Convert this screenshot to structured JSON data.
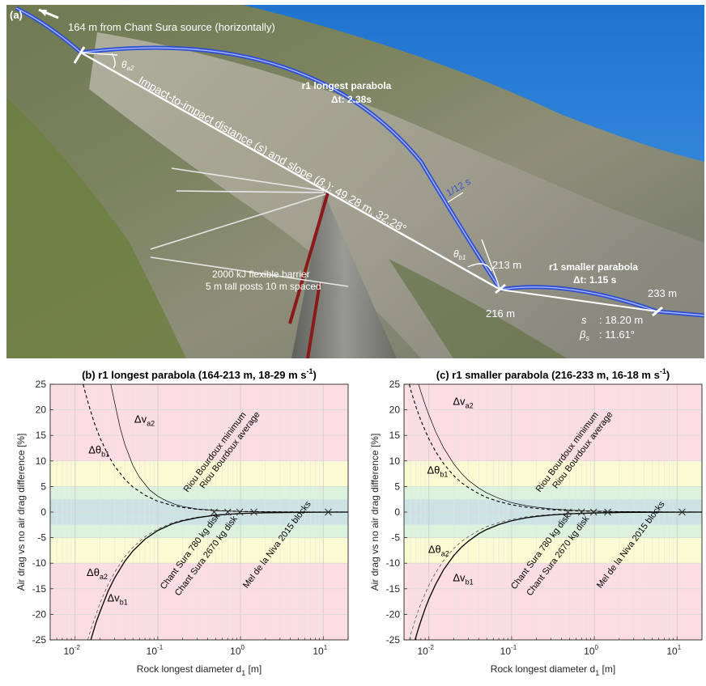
{
  "photo_panel": {
    "panel_label": "(a)",
    "source_note": "164 m from Chant Sura source (horizontally)",
    "theta_a2": "θ",
    "theta_a2_sub": "a2",
    "theta_b1": "θ",
    "theta_b1_sub": "b1",
    "impact_prefix": "Impact-to-impact distance (",
    "impact_s": "s",
    "impact_mid": ") and slope (",
    "impact_beta": "β",
    "impact_beta_sub": "s",
    "impact_suffix": "): 49.28 m, 32.28°",
    "longest_title": "r1 longest parabola",
    "longest_dt": "Δt: 2.38s",
    "tick_label": "1/12 s",
    "smaller_title": "r1 smaller parabola",
    "smaller_dt": "Δt: 1.15 s",
    "d213": "213 m",
    "d216": "216 m",
    "d233": "233 m",
    "barrier_line1": "2000 kJ flexible barrier",
    "barrier_line2": "5 m tall posts 10 m spaced",
    "s_label": "s",
    "s_value": "18.20 m",
    "beta_label": "β",
    "beta_sub": "s",
    "beta_value": "11.61°",
    "colors": {
      "sky": "#2a7fd6",
      "parabola": "#2f4fd0",
      "barrier": "#8a1a1a"
    }
  },
  "chart_data": [
    {
      "type": "line",
      "panel_label": "(b)",
      "title": "(b) r1 longest parabola (164-213 m, 18-29 m s",
      "title_sup": "-1",
      "title_end": ")",
      "xlabel": "Rock longest diameter d",
      "xlabel_sub": "1",
      "xlabel_end": " [m]",
      "ylabel": "Air drag vs no air drag difference [%]",
      "xscale": "log",
      "xlim": [
        0.005,
        20
      ],
      "ylim": [
        -25,
        25
      ],
      "grid": true,
      "x_ticks": [
        0.01,
        0.1,
        1,
        10
      ],
      "x_tick_labels": [
        [
          "10",
          "-2"
        ],
        [
          "10",
          "-1"
        ],
        [
          "10",
          "0"
        ],
        [
          "10",
          "1"
        ]
      ],
      "y_ticks": [
        -25,
        -20,
        -15,
        -10,
        -5,
        0,
        5,
        10,
        15,
        20,
        25
      ],
      "y_tick_labels": [
        "-25",
        "-20",
        "-15",
        "-10",
        "-5",
        "0",
        "5",
        "10",
        "15",
        "20",
        "25"
      ],
      "bands": [
        {
          "from": 10,
          "to": 25,
          "color": "#fbdde3"
        },
        {
          "from": 5,
          "to": 10,
          "color": "#fbfbd3"
        },
        {
          "from": 2.5,
          "to": 5,
          "color": "#dcf2dc"
        },
        {
          "from": -2.5,
          "to": 2.5,
          "color": "#cde3e3"
        },
        {
          "from": -5,
          "to": -2.5,
          "color": "#dcf2dc"
        },
        {
          "from": -10,
          "to": -5,
          "color": "#fbfbd3"
        },
        {
          "from": -25,
          "to": -10,
          "color": "#fbdde3"
        }
      ],
      "series": [
        {
          "name": "Δv",
          "name_sub": "a2",
          "style": "thin",
          "sign": 1,
          "x": [
            0.027,
            0.03,
            0.035,
            0.04,
            0.05,
            0.06,
            0.08,
            0.1,
            0.13,
            0.17,
            0.2,
            0.3,
            0.5,
            1,
            2,
            5,
            10,
            20
          ],
          "y": [
            25,
            21.5,
            16.5,
            13.2,
            9.1,
            6.8,
            4.3,
            3.1,
            2.1,
            1.4,
            1.1,
            0.6,
            0.3,
            0.12,
            0.05,
            0.02,
            0.01,
            0.0
          ]
        },
        {
          "name": "Δθ",
          "name_sub": "b1",
          "style": "dashed",
          "sign": 1,
          "x": [
            0.0125,
            0.014,
            0.017,
            0.02,
            0.025,
            0.03,
            0.04,
            0.05,
            0.07,
            0.1,
            0.15,
            0.2,
            0.3,
            0.5,
            1,
            2,
            5,
            10,
            20
          ],
          "y": [
            25,
            22,
            17.5,
            14.5,
            11.2,
            9.0,
            6.4,
            4.9,
            3.3,
            2.1,
            1.3,
            0.9,
            0.55,
            0.3,
            0.13,
            0.06,
            0.02,
            0.01,
            0.0
          ]
        },
        {
          "name": "Δθ",
          "name_sub": "a2",
          "style": "dashed-thin",
          "sign": -1,
          "x": [
            0.0142,
            0.016,
            0.02,
            0.025,
            0.03,
            0.04,
            0.05,
            0.07,
            0.1,
            0.15,
            0.2,
            0.3,
            0.5,
            1,
            2,
            5,
            10,
            20
          ],
          "y": [
            -25,
            -22.3,
            -17.8,
            -14.2,
            -11.8,
            -8.7,
            -6.9,
            -4.8,
            -3.3,
            -2.1,
            -1.55,
            -1.0,
            -0.55,
            -0.25,
            -0.12,
            -0.04,
            -0.02,
            0.0
          ]
        },
        {
          "name": "Δv",
          "name_sub": "b1",
          "style": "solid",
          "sign": -1,
          "x": [
            0.0155,
            0.018,
            0.02,
            0.025,
            0.03,
            0.04,
            0.05,
            0.07,
            0.1,
            0.15,
            0.2,
            0.3,
            0.5,
            1,
            2,
            5,
            10,
            20
          ],
          "y": [
            -25,
            -21.5,
            -19.5,
            -15.5,
            -12.9,
            -9.6,
            -7.6,
            -5.3,
            -3.6,
            -2.3,
            -1.7,
            -1.1,
            -0.6,
            -0.28,
            -0.13,
            -0.05,
            -0.02,
            0.0
          ]
        }
      ],
      "series_label_positions": [
        [
          0.052,
          17.5
        ],
        [
          0.0145,
          11.5
        ],
        [
          0.0138,
          -12.5
        ],
        [
          0.0245,
          -17.5
        ]
      ],
      "markers": [
        {
          "name": "Riou Bourdoux minimum",
          "x": 0.48,
          "y": 0
        },
        {
          "name": "Riou Bourdoux average",
          "x": 0.7,
          "y": 0
        },
        {
          "name": "Chant Sura 780 kg disk",
          "x": 0.98,
          "y": 0
        },
        {
          "name": "Chant Sura 2670 kg disk",
          "x": 1.45,
          "y": 0
        },
        {
          "name": "Mel de la Niva 2015 blocks",
          "x": 11.5,
          "y": 0
        }
      ],
      "annotations": [
        {
          "text": "Riou Bourdoux minimum",
          "x": 0.23,
          "y": 3.8,
          "angle": -53
        },
        {
          "text": "Riou Bourdoux average",
          "x": 0.36,
          "y": 4.5,
          "angle": -53
        },
        {
          "text": "Chant Sura 780 kg disk",
          "x": 0.12,
          "y": -15.2,
          "angle": -53
        },
        {
          "text": "Chant Sura 2670 kg disk",
          "x": 0.18,
          "y": -16.5,
          "angle": -53
        },
        {
          "text": "Mel de la Niva 2015 blocks",
          "x": 1.2,
          "y": -15,
          "angle": -53
        }
      ]
    },
    {
      "type": "line",
      "panel_label": "(c)",
      "title": "(c) r1 smaller parabola (216-233 m, 16-18 m s",
      "title_sup": "-1",
      "title_end": ")",
      "xlabel": "Rock longest diameter d",
      "xlabel_sub": "1",
      "xlabel_end": " [m]",
      "ylabel": "Air drag vs no air drag difference [%]",
      "xscale": "log",
      "xlim": [
        0.005,
        20
      ],
      "ylim": [
        -25,
        25
      ],
      "grid": true,
      "x_ticks": [
        0.01,
        0.1,
        1,
        10
      ],
      "x_tick_labels": [
        [
          "10",
          "-2"
        ],
        [
          "10",
          "-1"
        ],
        [
          "10",
          "0"
        ],
        [
          "10",
          "1"
        ]
      ],
      "y_ticks": [
        -25,
        -20,
        -15,
        -10,
        -5,
        0,
        5,
        10,
        15,
        20,
        25
      ],
      "y_tick_labels": [
        "-25",
        "-20",
        "-15",
        "-10",
        "-5",
        "0",
        "5",
        "10",
        "15",
        "20",
        "25"
      ],
      "bands": [
        {
          "from": 10,
          "to": 25,
          "color": "#fbdde3"
        },
        {
          "from": 5,
          "to": 10,
          "color": "#fbfbd3"
        },
        {
          "from": 2.5,
          "to": 5,
          "color": "#dcf2dc"
        },
        {
          "from": -2.5,
          "to": 2.5,
          "color": "#cde3e3"
        },
        {
          "from": -5,
          "to": -2.5,
          "color": "#dcf2dc"
        },
        {
          "from": -10,
          "to": -5,
          "color": "#fbfbd3"
        },
        {
          "from": -25,
          "to": -10,
          "color": "#fbdde3"
        }
      ],
      "series": [
        {
          "name": "Δv",
          "name_sub": "a2",
          "style": "thin",
          "sign": 1,
          "x": [
            0.0075,
            0.008,
            0.009,
            0.01,
            0.012,
            0.015,
            0.02,
            0.025,
            0.03,
            0.04,
            0.05,
            0.07,
            0.1,
            0.15,
            0.2,
            0.3,
            0.5,
            1,
            2,
            5,
            10,
            20
          ],
          "y": [
            25,
            23.5,
            21,
            19,
            15.8,
            12.6,
            9.4,
            7.5,
            6.2,
            4.7,
            3.75,
            2.7,
            1.85,
            1.25,
            0.95,
            0.63,
            0.38,
            0.19,
            0.1,
            0.04,
            0.02,
            0.0
          ]
        },
        {
          "name": "Δθ",
          "name_sub": "b1",
          "style": "dashed",
          "sign": 1,
          "x": [
            0.0058,
            0.006,
            0.007,
            0.008,
            0.01,
            0.012,
            0.015,
            0.02,
            0.025,
            0.03,
            0.04,
            0.05,
            0.07,
            0.1,
            0.15,
            0.2,
            0.3,
            0.5,
            1,
            2,
            5,
            10,
            20
          ],
          "y": [
            25,
            24,
            20.5,
            17.9,
            14.3,
            11.9,
            9.5,
            7.1,
            5.7,
            4.8,
            3.6,
            2.85,
            2.05,
            1.43,
            0.95,
            0.71,
            0.47,
            0.28,
            0.14,
            0.07,
            0.03,
            0.01,
            0.0
          ]
        },
        {
          "name": "Δθ",
          "name_sub": "a2",
          "style": "dashed-thin",
          "sign": -1,
          "x": [
            0.0058,
            0.006,
            0.007,
            0.008,
            0.01,
            0.012,
            0.015,
            0.02,
            0.025,
            0.03,
            0.04,
            0.05,
            0.07,
            0.1,
            0.15,
            0.2,
            0.3,
            0.5,
            1,
            2,
            5,
            10,
            20
          ],
          "y": [
            -25,
            -24,
            -20.5,
            -17.9,
            -14.3,
            -11.9,
            -9.5,
            -7.1,
            -5.7,
            -4.8,
            -3.6,
            -2.85,
            -2.05,
            -1.43,
            -0.95,
            -0.71,
            -0.47,
            -0.28,
            -0.14,
            -0.07,
            -0.03,
            -0.01,
            0.0
          ]
        },
        {
          "name": "Δv",
          "name_sub": "b1",
          "style": "solid",
          "sign": -1,
          "x": [
            0.0068,
            0.0075,
            0.008,
            0.009,
            0.01,
            0.012,
            0.015,
            0.02,
            0.025,
            0.03,
            0.04,
            0.05,
            0.07,
            0.1,
            0.15,
            0.2,
            0.3,
            0.5,
            1,
            2,
            5,
            10,
            20
          ],
          "y": [
            -25,
            -22.7,
            -21.3,
            -18.9,
            -17.0,
            -14.2,
            -11.3,
            -8.5,
            -6.8,
            -5.7,
            -4.25,
            -3.4,
            -2.43,
            -1.7,
            -1.13,
            -0.85,
            -0.57,
            -0.34,
            -0.17,
            -0.08,
            -0.03,
            -0.02,
            0.0
          ]
        }
      ],
      "series_label_positions": [
        [
          0.0195,
          21
        ],
        [
          0.0095,
          7.5
        ],
        [
          0.0098,
          -8
        ],
        [
          0.0195,
          -13.5
        ]
      ],
      "markers": [
        {
          "name": "Riou Bourdoux minimum",
          "x": 0.48,
          "y": 0
        },
        {
          "name": "Riou Bourdoux average",
          "x": 0.7,
          "y": 0
        },
        {
          "name": "Chant Sura 780 kg disk",
          "x": 0.98,
          "y": 0
        },
        {
          "name": "Chant Sura 2670 kg disk",
          "x": 1.45,
          "y": 0
        },
        {
          "name": "Mel de la Niva 2015 blocks",
          "x": 11.5,
          "y": 0
        }
      ],
      "annotations": [
        {
          "text": "Riou Bourdoux minimum",
          "x": 0.22,
          "y": 3.8,
          "angle": -53
        },
        {
          "text": "Riou Bourdoux average",
          "x": 0.35,
          "y": 4.5,
          "angle": -53
        },
        {
          "text": "Chant Sura 780 kg disk",
          "x": 0.11,
          "y": -15.2,
          "angle": -53
        },
        {
          "text": "Chant Sura 2670 kg disk",
          "x": 0.17,
          "y": -16.5,
          "angle": -53
        },
        {
          "text": "Mel de la Niva 2015 blocks",
          "x": 1.2,
          "y": -15,
          "angle": -53
        }
      ]
    }
  ]
}
